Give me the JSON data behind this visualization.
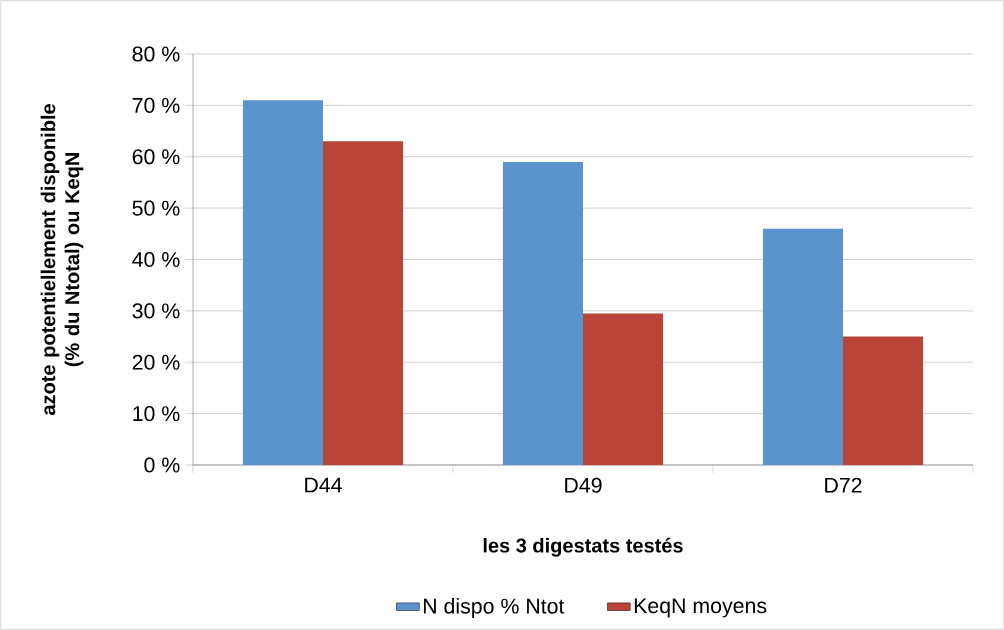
{
  "chart_data": {
    "type": "bar",
    "xlabel": "les 3 digestats testés",
    "ylabel": "azote potentiellement disponible (% du Ntotal) ou KeqN",
    "categories": [
      "D44",
      "D49",
      "D72"
    ],
    "series": [
      {
        "name": "N dispo % Ntot",
        "color": "#5b93cc",
        "values": [
          71,
          59,
          46
        ]
      },
      {
        "name": "KeqN moyens",
        "color": "#b9443a",
        "values": [
          63,
          29.5,
          25
        ]
      }
    ],
    "ylim": [
      0,
      80
    ],
    "yticks": [
      {
        "value": 0,
        "label": "0 %"
      },
      {
        "value": 10,
        "label": "10 %"
      },
      {
        "value": 20,
        "label": "20 %"
      },
      {
        "value": 30,
        "label": "30 %"
      },
      {
        "value": 40,
        "label": "40 %"
      },
      {
        "value": 50,
        "label": "50 %"
      },
      {
        "value": 60,
        "label": "60 %"
      },
      {
        "value": 70,
        "label": "70 %"
      },
      {
        "value": 80,
        "label": "80 %"
      }
    ],
    "grid": "y",
    "legend": "bottom"
  }
}
